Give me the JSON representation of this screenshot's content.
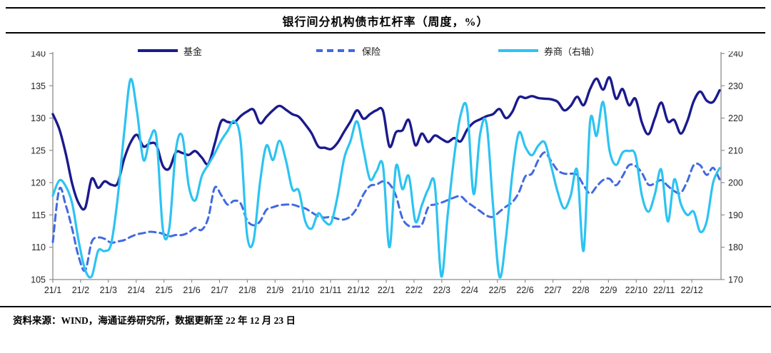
{
  "title": "银行间分机构债市杠杆率（周度，%）",
  "footer": {
    "source_note": "资料来源：WIND，海通证券研究所，数据更新至 22 年 12 月 23 日"
  },
  "colors": {
    "fund": "#1a1a8e",
    "insurance": "#4169e1",
    "broker": "#2cc3f2",
    "axis_line": "#8c8c8c",
    "tick_text": "#262626"
  },
  "chart_data": {
    "type": "line",
    "title": "银行间分机构债市杠杆率（周度，%）",
    "grid": false,
    "legend_position": "top",
    "frequency": "weekly",
    "x_tick_labels": [
      "21/1",
      "21/2",
      "21/3",
      "21/4",
      "21/5",
      "21/6",
      "21/7",
      "21/8",
      "21/9",
      "21/10",
      "21/11",
      "21/12",
      "22/1",
      "22/2",
      "22/3",
      "22/4",
      "22/5",
      "22/6",
      "22/7",
      "22/8",
      "22/9",
      "22/10",
      "22/11",
      "22/12"
    ],
    "left_axis": {
      "min": 105,
      "max": 140,
      "ticks": [
        140,
        135,
        130,
        125,
        120,
        115,
        110,
        105
      ]
    },
    "right_axis": {
      "min": 170,
      "max": 240,
      "ticks": [
        240,
        230,
        220,
        210,
        200,
        190,
        180,
        170
      ]
    },
    "series": [
      {
        "name": "基金",
        "axis": "left",
        "style": "solid",
        "color": "#1a1a8e",
        "width": 3.4,
        "values": [
          130.6,
          128.3,
          124.5,
          119.8,
          116.8,
          116.1,
          120.6,
          119.2,
          120.2,
          119.7,
          119.9,
          123.6,
          126.2,
          127.4,
          125.6,
          126.1,
          125.8,
          122.6,
          122.2,
          124.7,
          124.6,
          124.3,
          124.9,
          123.9,
          122.9,
          126.0,
          129.5,
          129.4,
          129.3,
          130.3,
          131.0,
          131.3,
          129.2,
          130.2,
          131.2,
          131.9,
          131.3,
          130.6,
          130.2,
          129.0,
          127.6,
          125.6,
          125.4,
          125.2,
          126.2,
          127.9,
          129.5,
          131.2,
          129.9,
          130.6,
          131.2,
          131.1,
          125.6,
          127.8,
          128.1,
          129.7,
          125.8,
          127.6,
          126.3,
          127.3,
          126.8,
          126.3,
          126.9,
          126.4,
          128.2,
          129.3,
          129.8,
          130.3,
          130.6,
          131.4,
          130.0,
          131.0,
          133.2,
          133.1,
          133.4,
          133.1,
          133.0,
          132.9,
          132.5,
          131.2,
          131.9,
          133.3,
          132.0,
          134.5,
          136.1,
          134.4,
          136.3,
          133.0,
          134.5,
          132.0,
          133.0,
          129.3,
          127.5,
          130.0,
          132.4,
          129.5,
          129.7,
          127.6,
          129.5,
          132.6,
          134.1,
          132.7,
          132.5,
          134.3
        ]
      },
      {
        "name": "保险",
        "axis": "left",
        "style": "dashed",
        "color": "#4169e1",
        "width": 3.0,
        "values": [
          110.8,
          119.0,
          116.5,
          112.8,
          108.5,
          106.4,
          110.8,
          111.5,
          111.3,
          110.7,
          110.9,
          111.1,
          111.6,
          112.0,
          112.2,
          112.4,
          112.3,
          112.1,
          111.7,
          111.9,
          111.9,
          112.3,
          113.0,
          112.7,
          114.5,
          119.2,
          118.1,
          116.6,
          117.2,
          116.8,
          114.2,
          113.4,
          114.0,
          115.8,
          116.2,
          116.5,
          116.6,
          116.6,
          116.3,
          116.0,
          115.4,
          114.8,
          114.6,
          114.7,
          114.4,
          114.3,
          114.8,
          116.1,
          118.2,
          119.5,
          119.7,
          120.2,
          119.8,
          118.0,
          114.5,
          113.3,
          113.2,
          113.5,
          116.2,
          116.6,
          116.9,
          117.3,
          117.7,
          117.9,
          117.0,
          116.3,
          115.6,
          114.9,
          114.7,
          115.5,
          116.3,
          117.0,
          118.5,
          121.0,
          121.4,
          123.5,
          124.7,
          123.3,
          121.9,
          121.4,
          121.4,
          121.2,
          119.6,
          118.3,
          119.4,
          120.4,
          120.6,
          119.6,
          121.0,
          122.7,
          122.6,
          121.5,
          119.7,
          119.9,
          120.4,
          119.5,
          118.7,
          118.4,
          120.2,
          122.7,
          122.7,
          121.2,
          122.3,
          120.5
        ]
      },
      {
        "name": "券商（右轴）",
        "axis": "right",
        "style": "solid",
        "color": "#2cc3f2",
        "width": 3.2,
        "values": [
          196.0,
          200.7,
          198.9,
          193.5,
          181.8,
          173.0,
          171.0,
          178.9,
          178.8,
          181.0,
          195.0,
          215.0,
          232.0,
          222.0,
          207.0,
          213.5,
          214.0,
          185.5,
          186.0,
          210.0,
          214.4,
          199.0,
          194.5,
          202.0,
          205.5,
          209.0,
          213.0,
          216.0,
          219.0,
          213.0,
          184.0,
          182.0,
          200.0,
          211.5,
          207.0,
          213.0,
          207.0,
          198.0,
          197.5,
          188.0,
          185.8,
          190.5,
          188.0,
          187.6,
          196.0,
          207.5,
          213.0,
          219.0,
          210.0,
          201.0,
          203.5,
          205.2,
          180.0,
          205.0,
          198.0,
          202.0,
          188.0,
          193.0,
          198.0,
          199.5,
          171.0,
          190.0,
          208.0,
          221.0,
          222.8,
          196.5,
          215.0,
          218.2,
          193.0,
          170.8,
          183.0,
          203.0,
          215.5,
          211.0,
          208.5,
          211.5,
          212.4,
          205.0,
          197.0,
          192.0,
          196.0,
          203.8,
          179.0,
          219.0,
          214.5,
          225.0,
          210.0,
          205.5,
          209.3,
          209.8,
          208.5,
          196.0,
          191.0,
          196.4,
          204.0,
          188.0,
          201.0,
          193.5,
          190.0,
          191.0,
          184.8,
          188.0,
          200.0,
          204.5
        ]
      }
    ]
  }
}
